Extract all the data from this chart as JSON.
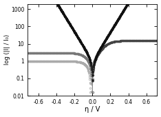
{
  "xlabel": "η / V",
  "ylabel": "log (|I| / I₀)",
  "xlim": [
    -0.72,
    0.72
  ],
  "ylim_log": [
    0.01,
    2000
  ],
  "yticks": [
    0.01,
    0.1,
    1,
    10,
    100,
    1000
  ],
  "ytick_labels": [
    "0.01",
    "0.1",
    "1",
    "10",
    "100",
    "1000"
  ],
  "xticks": [
    -0.6,
    -0.4,
    -0.2,
    0.0,
    0.2,
    0.4,
    0.6
  ],
  "figsize": [
    2.34,
    1.7
  ],
  "dpi": 100,
  "curves": [
    {
      "j0": 1.0,
      "alpha": 0.5,
      "jLc": 1.0,
      "jLa": 1000000000.0,
      "marker": "o",
      "mfc": "none",
      "color": "#aaaaaa",
      "ms": 1.8,
      "mevery": 7
    },
    {
      "j0": 1.0,
      "alpha": 0.5,
      "jLc": 3.0,
      "jLa": 1000000000.0,
      "marker": "o",
      "mfc": "none",
      "color": "#777777",
      "ms": 1.8,
      "mevery": 7
    },
    {
      "j0": 1.0,
      "alpha": 0.5,
      "jLc": 1000000000.0,
      "jLa": 15.0,
      "marker": "o",
      "mfc": "none",
      "color": "#444444",
      "ms": 1.8,
      "mevery": 7
    },
    {
      "j0": 1.0,
      "alpha": 0.5,
      "jLc": 1000000000.0,
      "jLa": 1000000000.0,
      "marker": "o",
      "mfc": "none",
      "color": "#111111",
      "ms": 1.8,
      "mevery": 7
    }
  ],
  "line_color": "#888888",
  "line_width": 0.6
}
